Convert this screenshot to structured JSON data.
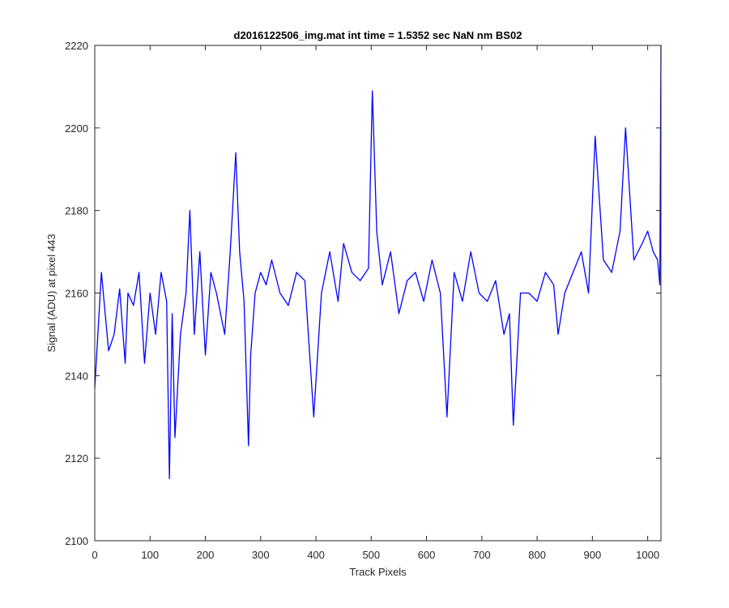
{
  "chart_data": {
    "type": "line",
    "title": "d2016122506_img.mat int time = 1.5352 sec  NaN nm BS02",
    "xlabel": "Track Pixels",
    "ylabel": "Signal (ADU) at pixel 443",
    "xlim": [
      0,
      1024
    ],
    "ylim": [
      2100,
      2220
    ],
    "xticks": [
      0,
      100,
      200,
      300,
      400,
      500,
      600,
      700,
      800,
      900,
      1000
    ],
    "xtick_labels": [
      "0",
      "100",
      "200",
      "300",
      "400",
      "500",
      "600",
      "700",
      "800",
      "900",
      "1000"
    ],
    "yticks": [
      2100,
      2120,
      2140,
      2160,
      2180,
      2200,
      2220
    ],
    "ytick_labels": [
      "2100",
      "2120",
      "2140",
      "2160",
      "2180",
      "2200",
      "2220"
    ],
    "grid": false,
    "legend": "none",
    "series": [
      {
        "color": "#0000ff",
        "x": [
          0,
          12,
          25,
          35,
          45,
          55,
          60,
          70,
          80,
          90,
          100,
          110,
          120,
          130,
          135,
          140,
          145,
          155,
          165,
          172,
          180,
          190,
          200,
          210,
          220,
          235,
          245,
          255,
          262,
          270,
          278,
          282,
          290,
          300,
          310,
          320,
          335,
          350,
          365,
          380,
          396,
          410,
          425,
          440,
          450,
          465,
          480,
          495,
          502,
          510,
          520,
          535,
          550,
          565,
          580,
          595,
          610,
          625,
          637,
          650,
          665,
          680,
          695,
          710,
          725,
          740,
          750,
          757,
          770,
          785,
          800,
          815,
          830,
          838,
          850,
          865,
          880,
          893,
          905,
          920,
          935,
          950,
          960,
          975,
          990,
          1000,
          1010,
          1018,
          1022,
          1024
        ],
        "y": [
          2137,
          2165,
          2146,
          2150,
          2161,
          2143,
          2160,
          2157,
          2165,
          2143,
          2160,
          2150,
          2165,
          2158,
          2115,
          2155,
          2125,
          2150,
          2160,
          2180,
          2150,
          2170,
          2145,
          2165,
          2160,
          2150,
          2170,
          2194,
          2170,
          2158,
          2123,
          2145,
          2160,
          2165,
          2162,
          2168,
          2160,
          2157,
          2165,
          2163,
          2130,
          2160,
          2170,
          2158,
          2172,
          2165,
          2163,
          2166,
          2209,
          2175,
          2162,
          2170,
          2155,
          2163,
          2165,
          2158,
          2168,
          2160,
          2130,
          2165,
          2158,
          2170,
          2160,
          2158,
          2163,
          2150,
          2155,
          2128,
          2160,
          2160,
          2158,
          2165,
          2162,
          2150,
          2160,
          2165,
          2170,
          2160,
          2198,
          2168,
          2165,
          2175,
          2200,
          2168,
          2172,
          2175,
          2170,
          2168,
          2162,
          2220
        ]
      }
    ]
  }
}
